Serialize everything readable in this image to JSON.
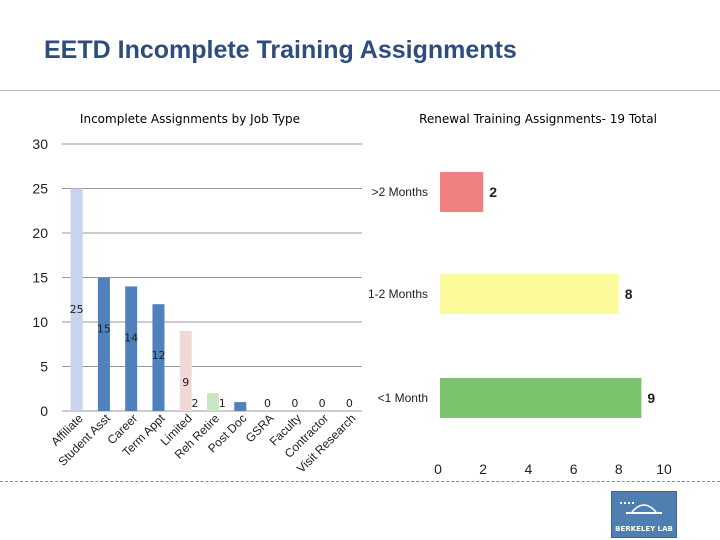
{
  "slide": {
    "title": "EETD Incomplete Training Assignments",
    "logo_text": "BERKELEY LAB"
  },
  "chart_data": [
    {
      "type": "bar",
      "title": "Incomplete Assignments by Job Type",
      "categories": [
        "Affiliate",
        "Student Asst",
        "Career",
        "Term Appt",
        "Limited",
        "Reh Retire",
        "Post Doc",
        "GSRA",
        "Faculty",
        "Contractor",
        "Visit Research"
      ],
      "values": [
        25,
        15,
        14,
        12,
        9,
        2,
        1,
        0,
        0,
        0,
        0
      ],
      "data_labels": [
        "25",
        "15",
        "14",
        "12",
        "9",
        "2",
        "1",
        "0",
        "0",
        "0",
        "0"
      ],
      "colors": [
        "#c8d3ee",
        "#4f81bd",
        "#4f81bd",
        "#4f81bd",
        "#f2d7d7",
        "#c7e6c1",
        "#4f81bd",
        "#4f81bd",
        "#4f81bd",
        "#4f81bd",
        "#4f81bd"
      ],
      "ylim": [
        0,
        30
      ],
      "yticks": [
        0,
        5,
        10,
        15,
        20,
        25,
        30
      ],
      "grid": true
    },
    {
      "type": "bar",
      "orientation": "horizontal",
      "title": "Renewal Training Assignments- 19 Total",
      "categories": [
        ">2 Months",
        "1-2 Months",
        "<1 Month"
      ],
      "values": [
        2,
        8,
        9
      ],
      "data_labels": [
        "2",
        "8",
        "9"
      ],
      "colors": [
        "#f08080",
        "#fbfb9b",
        "#7cc36e"
      ],
      "xlim": [
        0,
        10
      ],
      "xticks": [
        0,
        2,
        4,
        6,
        8,
        10
      ],
      "grid": false
    }
  ]
}
